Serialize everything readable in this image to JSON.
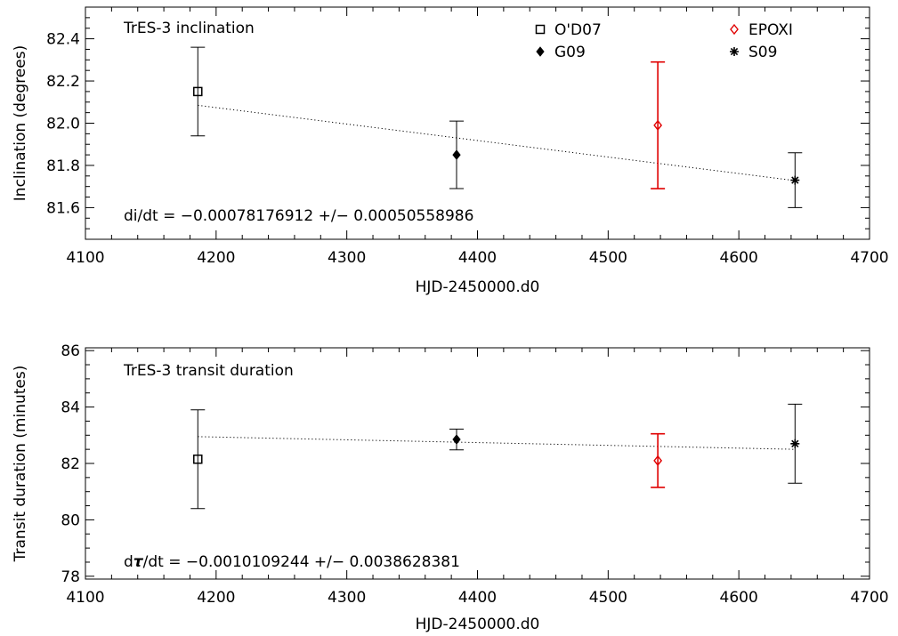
{
  "chart_data": [
    {
      "type": "scatter",
      "title": "TrES-3 inclination",
      "xlabel": "HJD-2450000.d0",
      "ylabel": "Inclination (degrees)",
      "xlim": [
        4100,
        4700
      ],
      "ylim": [
        81.45,
        82.55
      ],
      "xticks": [
        4100,
        4200,
        4300,
        4400,
        4500,
        4600,
        4700
      ],
      "yticks": [
        81.6,
        81.8,
        82.0,
        82.2,
        82.4
      ],
      "ytick_labels": [
        "81.6",
        "81.8",
        "82.0",
        "82.2",
        "82.4"
      ],
      "annotation": "di/dt = −0.00078176912 +/− 0.00050558986",
      "fit_line": {
        "x": [
          4186,
          4643
        ],
        "y": [
          82.085,
          81.728
        ]
      },
      "series": [
        {
          "name": "O'D07",
          "marker": "square",
          "color": "#000000",
          "x": [
            4186
          ],
          "y": [
            82.15
          ],
          "err": [
            0.21
          ]
        },
        {
          "name": "G09",
          "marker": "diamond-filled",
          "color": "#000000",
          "x": [
            4384
          ],
          "y": [
            81.85
          ],
          "err": [
            0.16
          ]
        },
        {
          "name": "EPOXI",
          "marker": "diamond-open",
          "color": "#e00000",
          "x": [
            4538
          ],
          "y": [
            81.99
          ],
          "err": [
            0.3
          ]
        },
        {
          "name": "S09",
          "marker": "asterisk",
          "color": "#000000",
          "x": [
            4643
          ],
          "y": [
            81.73
          ],
          "err": [
            0.13
          ]
        }
      ],
      "legend_placement": "top-right",
      "grid": false
    },
    {
      "type": "scatter",
      "title": "TrES-3 transit duration",
      "xlabel": "HJD-2450000.d0",
      "ylabel": "Transit duration (minutes)",
      "xlim": [
        4100,
        4700
      ],
      "ylim": [
        77.9,
        86.1
      ],
      "xticks": [
        4100,
        4200,
        4300,
        4400,
        4500,
        4600,
        4700
      ],
      "yticks": [
        78,
        80,
        82,
        84,
        86
      ],
      "ytick_labels": [
        "78",
        "80",
        "82",
        "84",
        "86"
      ],
      "annotation_prefix": "d",
      "annotation_symbol": "τ",
      "annotation_suffix": "/dt = −0.0010109244 +/− 0.0038628381",
      "fit_line": {
        "x": [
          4186,
          4643
        ],
        "y": [
          82.95,
          82.5
        ]
      },
      "series": [
        {
          "name": "O'D07",
          "marker": "square",
          "color": "#000000",
          "x": [
            4186
          ],
          "y": [
            82.15
          ],
          "err": [
            1.75
          ]
        },
        {
          "name": "G09",
          "marker": "diamond-filled",
          "color": "#000000",
          "x": [
            4384
          ],
          "y": [
            82.85
          ],
          "err": [
            0.37
          ]
        },
        {
          "name": "EPOXI",
          "marker": "diamond-open",
          "color": "#e00000",
          "x": [
            4538
          ],
          "y": [
            82.1
          ],
          "err": [
            0.95
          ]
        },
        {
          "name": "S09",
          "marker": "asterisk",
          "color": "#000000",
          "x": [
            4643
          ],
          "y": [
            82.7
          ],
          "err": [
            1.4
          ]
        }
      ],
      "grid": false
    }
  ]
}
